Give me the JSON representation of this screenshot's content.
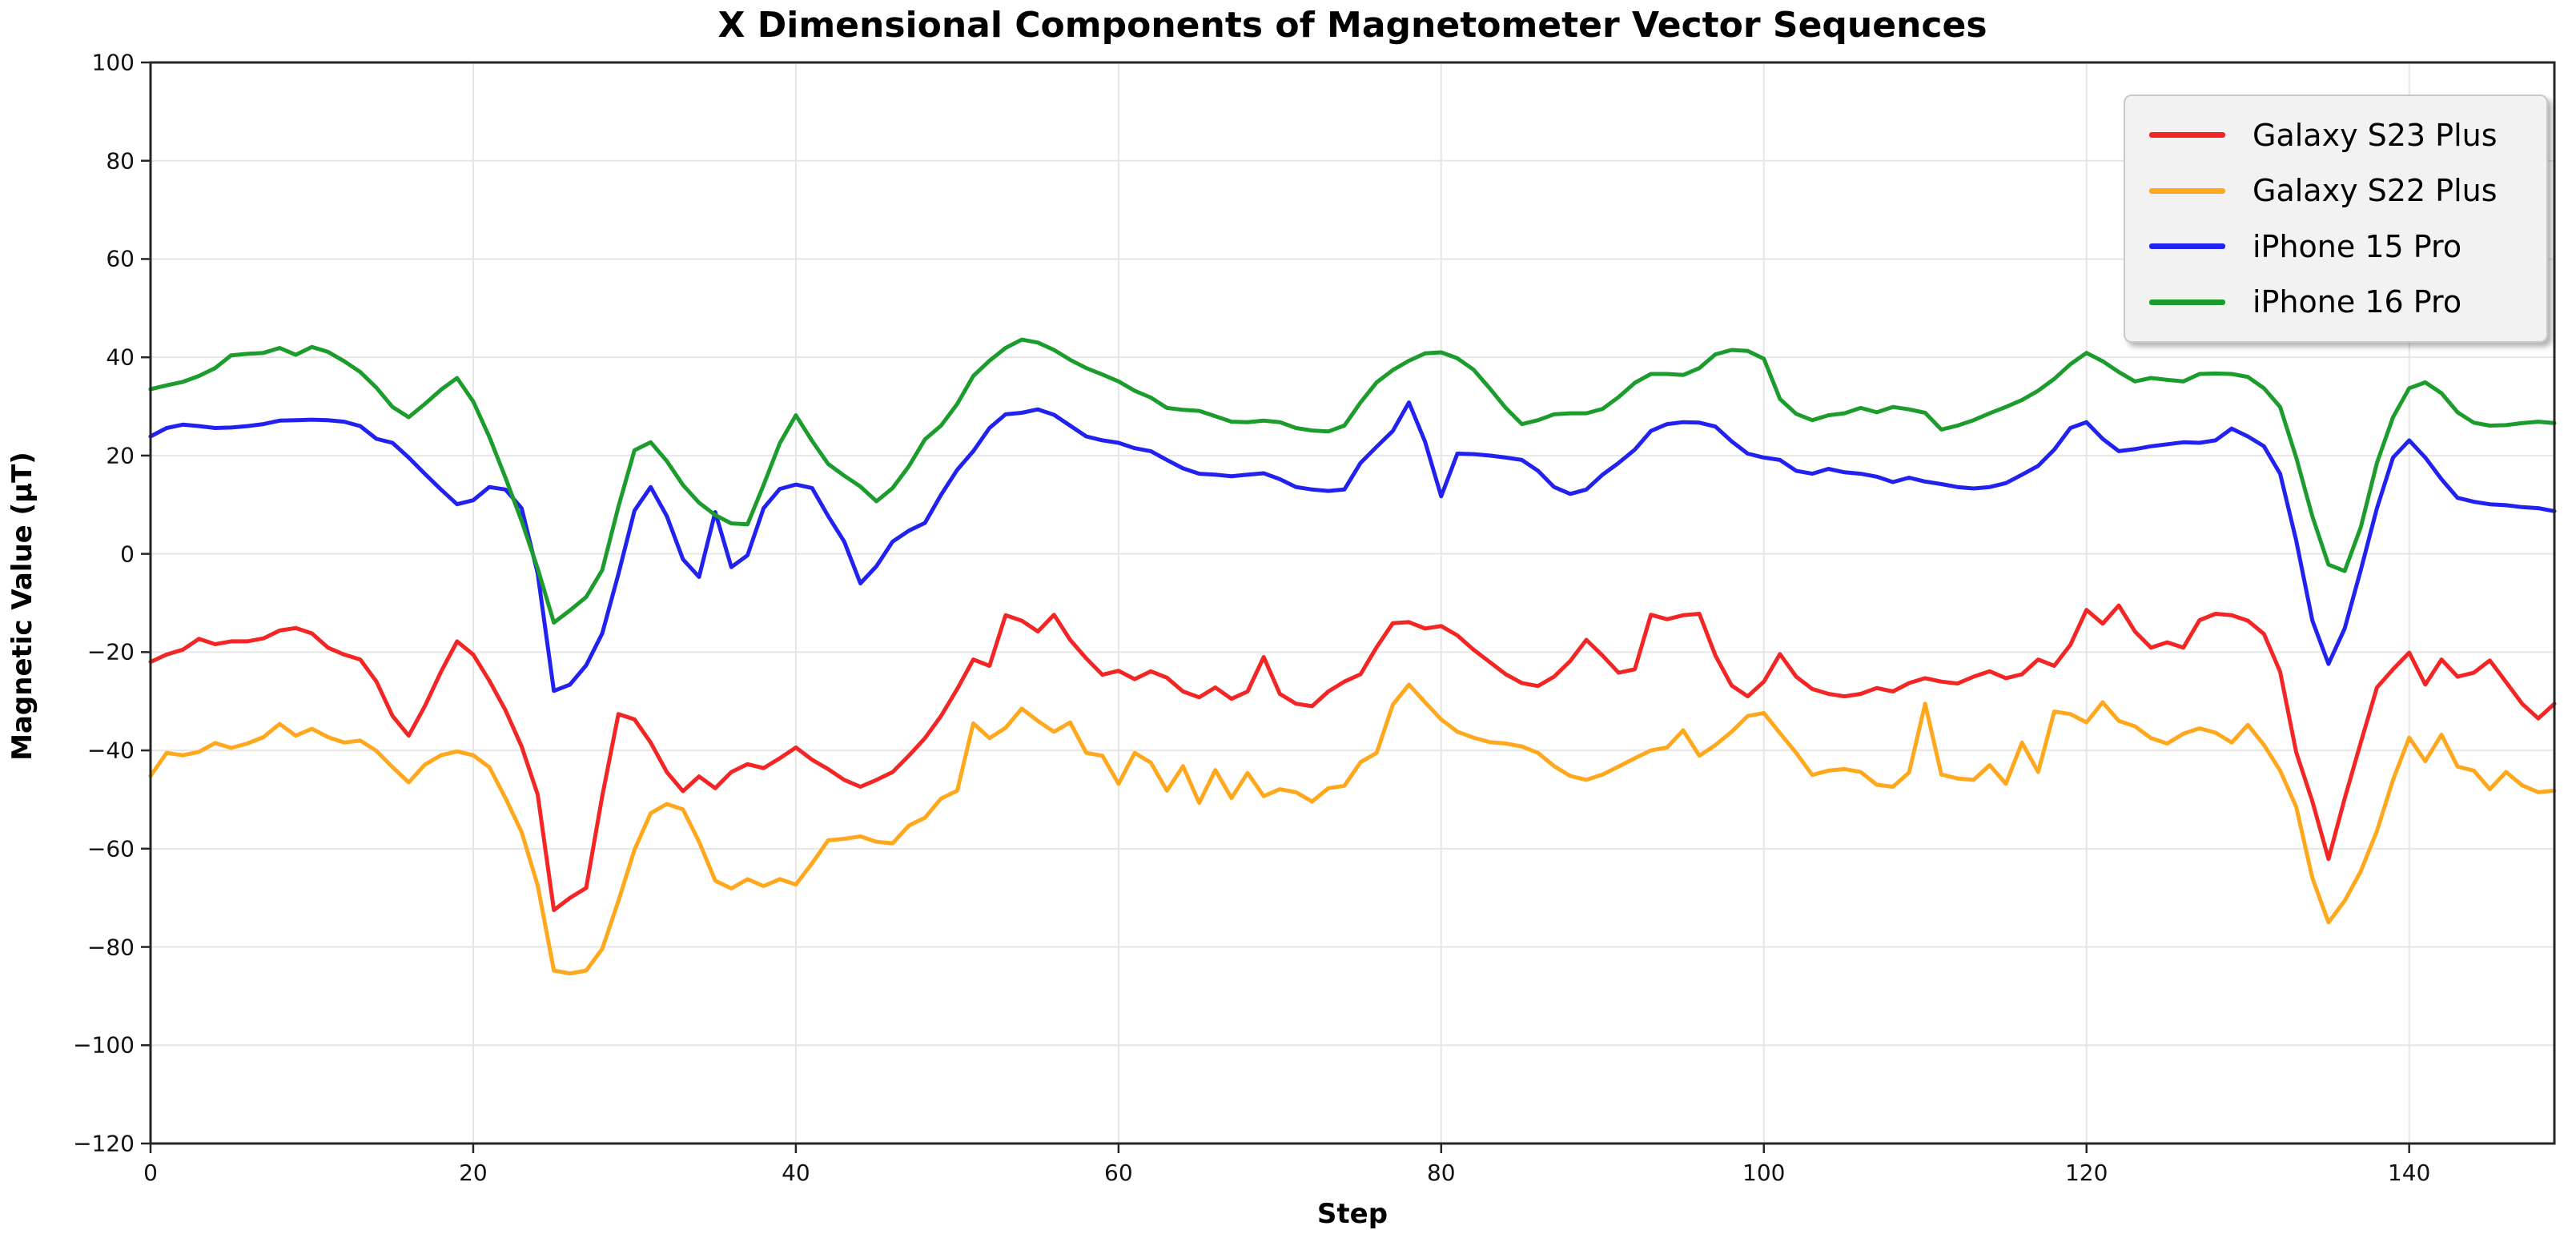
{
  "chart_data": {
    "type": "line",
    "title": "X Dimensional Components of Magnetometer Vector Sequences",
    "xlabel": "Step",
    "ylabel": "Magnetic Value (μT)",
    "xlim": [
      0,
      149
    ],
    "ylim": [
      -120,
      100
    ],
    "x_ticks": [
      0,
      20,
      40,
      60,
      80,
      100,
      120,
      140
    ],
    "y_ticks": [
      100,
      80,
      60,
      40,
      20,
      0,
      -20,
      -40,
      -60,
      -80,
      -100,
      -120
    ],
    "grid": true,
    "legend_position": "upper right",
    "x": "0..149 (step index, one point per step)",
    "series": [
      {
        "name": "Galaxy S23 Plus",
        "color": "#f42525",
        "values": [
          -22.0,
          -20.5,
          -19.5,
          -17.3,
          -18.4,
          -17.8,
          -17.8,
          -17.2,
          -15.6,
          -15.1,
          -16.2,
          -19.1,
          -20.5,
          -21.5,
          -26.0,
          -33.0,
          -37.0,
          -31.0,
          -24.0,
          -17.8,
          -20.5,
          -25.8,
          -31.8,
          -39.2,
          -49.0,
          -72.5,
          -70.0,
          -68.0,
          -49.3,
          -32.6,
          -33.7,
          -38.4,
          -44.4,
          -48.3,
          -45.3,
          -47.7,
          -44.4,
          -42.8,
          -43.6,
          -41.6,
          -39.4,
          -41.9,
          -43.8,
          -46.0,
          -47.4,
          -46.0,
          -44.4,
          -41.1,
          -37.5,
          -33.0,
          -27.5,
          -21.5,
          -22.8,
          -12.5,
          -13.6,
          -15.8,
          -12.4,
          -17.5,
          -21.3,
          -24.6,
          -23.8,
          -25.5,
          -23.9,
          -25.2,
          -28.0,
          -29.2,
          -27.2,
          -29.5,
          -28.0,
          -21.0,
          -28.5,
          -30.5,
          -31.0,
          -28.0,
          -26.0,
          -24.5,
          -19.0,
          -14.1,
          -13.9,
          -15.2,
          -14.7,
          -16.6,
          -19.5,
          -22.0,
          -24.5,
          -26.3,
          -26.9,
          -25.0,
          -21.8,
          -17.5,
          -20.7,
          -24.2,
          -23.5,
          -12.4,
          -13.3,
          -12.5,
          -12.2,
          -20.7,
          -26.8,
          -29.0,
          -26.0,
          -20.4,
          -25.0,
          -27.5,
          -28.5,
          -29.0,
          -28.5,
          -27.3,
          -28.0,
          -26.3,
          -25.3,
          -26.0,
          -26.4,
          -25.0,
          -23.9,
          -25.3,
          -24.5,
          -21.5,
          -22.8,
          -18.5,
          -11.4,
          -14.2,
          -10.5,
          -15.8,
          -19.1,
          -18.0,
          -19.1,
          -13.5,
          -12.2,
          -12.5,
          -13.6,
          -16.3,
          -24.0,
          -40.4,
          -50.4,
          -62.1,
          -49.8,
          -38.4,
          -27.2,
          -23.5,
          -20.1,
          -26.6,
          -21.5,
          -25.0,
          -24.2,
          -21.7,
          -26.1,
          -30.5,
          -33.5,
          -30.5
        ]
      },
      {
        "name": "Galaxy S22 Plus",
        "color": "#ffa81e",
        "values": [
          -45.2,
          -40.5,
          -41.0,
          -40.3,
          -38.5,
          -39.5,
          -38.6,
          -37.3,
          -34.6,
          -37.0,
          -35.6,
          -37.3,
          -38.4,
          -38.0,
          -40.1,
          -43.4,
          -46.5,
          -42.9,
          -41.0,
          -40.2,
          -41.0,
          -43.4,
          -49.7,
          -56.6,
          -67.5,
          -84.8,
          -85.4,
          -84.8,
          -80.4,
          -70.6,
          -60.2,
          -52.8,
          -50.9,
          -52.0,
          -58.6,
          -66.5,
          -68.1,
          -66.2,
          -67.6,
          -66.2,
          -67.3,
          -63.0,
          -58.3,
          -58.0,
          -57.5,
          -58.6,
          -58.9,
          -55.3,
          -53.7,
          -49.8,
          -48.2,
          -34.5,
          -37.5,
          -35.4,
          -31.5,
          -34.0,
          -36.2,
          -34.3,
          -40.5,
          -41.1,
          -46.8,
          -40.5,
          -42.5,
          -48.2,
          -43.2,
          -50.7,
          -44.0,
          -49.7,
          -44.6,
          -49.3,
          -47.9,
          -48.5,
          -50.4,
          -47.7,
          -47.2,
          -42.4,
          -40.5,
          -30.7,
          -26.6,
          -30.2,
          -33.7,
          -36.2,
          -37.4,
          -38.3,
          -38.6,
          -39.2,
          -40.5,
          -43.2,
          -45.2,
          -46.0,
          -44.9,
          -43.3,
          -41.6,
          -40.0,
          -39.4,
          -35.9,
          -41.1,
          -38.9,
          -36.2,
          -33.0,
          -32.4,
          -36.5,
          -40.5,
          -45.0,
          -44.1,
          -43.8,
          -44.4,
          -47.0,
          -47.4,
          -44.5,
          -30.5,
          -44.9,
          -45.7,
          -46.0,
          -43.0,
          -46.8,
          -38.4,
          -44.4,
          -32.1,
          -32.6,
          -34.3,
          -30.2,
          -34.0,
          -35.1,
          -37.5,
          -38.6,
          -36.6,
          -35.5,
          -36.4,
          -38.4,
          -34.8,
          -38.9,
          -44.1,
          -51.5,
          -66.0,
          -75.0,
          -70.6,
          -64.6,
          -56.4,
          -46.0,
          -37.4,
          -42.2,
          -36.8,
          -43.3,
          -44.1,
          -47.9,
          -44.4,
          -47.1,
          -48.5,
          -48.2
        ]
      },
      {
        "name": "iPhone 15 Pro",
        "color": "#2121f0",
        "values": [
          23.9,
          25.6,
          26.3,
          26.0,
          25.6,
          25.7,
          26.0,
          26.4,
          27.1,
          27.2,
          27.3,
          27.2,
          26.9,
          26.0,
          23.4,
          22.6,
          19.6,
          16.3,
          13.1,
          10.1,
          10.9,
          13.6,
          13.1,
          9.3,
          -4.0,
          -27.9,
          -26.6,
          -22.7,
          -16.2,
          -4.1,
          8.8,
          13.6,
          7.7,
          -1.1,
          -4.7,
          8.5,
          -2.7,
          -0.3,
          9.3,
          13.2,
          14.1,
          13.4,
          7.7,
          2.5,
          -6.0,
          -2.5,
          2.5,
          4.7,
          6.3,
          12.0,
          17.1,
          20.9,
          25.6,
          28.4,
          28.7,
          29.4,
          28.3,
          26.1,
          23.9,
          23.1,
          22.6,
          21.5,
          20.9,
          19.1,
          17.4,
          16.3,
          16.1,
          15.8,
          16.1,
          16.4,
          15.2,
          13.6,
          13.1,
          12.8,
          13.1,
          18.5,
          21.8,
          25.0,
          30.8,
          22.8,
          11.7,
          20.4,
          20.3,
          20.0,
          19.6,
          19.1,
          16.9,
          13.6,
          12.2,
          13.1,
          16.1,
          18.5,
          21.2,
          25.0,
          26.4,
          26.8,
          26.7,
          25.9,
          22.9,
          20.4,
          19.6,
          19.1,
          16.9,
          16.3,
          17.3,
          16.6,
          16.3,
          15.7,
          14.6,
          15.5,
          14.7,
          14.2,
          13.6,
          13.3,
          13.6,
          14.4,
          16.1,
          17.9,
          21.2,
          25.6,
          26.8,
          23.4,
          20.9,
          21.3,
          21.9,
          22.3,
          22.7,
          22.6,
          23.1,
          25.5,
          23.9,
          21.9,
          16.3,
          2.7,
          -13.6,
          -22.4,
          -15.2,
          -3.3,
          9.3,
          19.6,
          23.1,
          19.6,
          15.2,
          11.4,
          10.6,
          10.1,
          9.9,
          9.5,
          9.3,
          8.7
        ]
      },
      {
        "name": "iPhone 16 Pro",
        "color": "#1b9c2c",
        "values": [
          33.5,
          34.3,
          35.0,
          36.2,
          37.8,
          40.4,
          40.7,
          40.9,
          41.9,
          40.5,
          42.1,
          41.1,
          39.2,
          37.0,
          33.8,
          29.9,
          27.8,
          30.5,
          33.4,
          35.8,
          31.0,
          23.8,
          15.5,
          6.7,
          -3.0,
          -14.0,
          -11.5,
          -8.8,
          -3.3,
          9.6,
          21.1,
          22.7,
          18.9,
          14.0,
          10.4,
          7.9,
          6.2,
          6.0,
          14.0,
          22.5,
          28.2,
          23.0,
          18.3,
          15.9,
          13.7,
          10.7,
          13.4,
          17.8,
          23.3,
          26.1,
          30.5,
          36.2,
          39.3,
          41.9,
          43.6,
          43.0,
          41.5,
          39.5,
          37.8,
          36.5,
          35.1,
          33.2,
          31.8,
          29.7,
          29.3,
          29.1,
          28.0,
          26.9,
          26.8,
          27.1,
          26.8,
          25.6,
          25.1,
          24.9,
          26.1,
          30.8,
          34.9,
          37.4,
          39.3,
          40.8,
          41.0,
          39.8,
          37.5,
          33.7,
          29.7,
          26.4,
          27.2,
          28.4,
          28.6,
          28.6,
          29.5,
          31.9,
          34.8,
          36.6,
          36.6,
          36.4,
          37.8,
          40.6,
          41.5,
          41.3,
          39.7,
          31.5,
          28.5,
          27.2,
          28.2,
          28.6,
          29.7,
          28.8,
          29.9,
          29.4,
          28.7,
          25.3,
          26.1,
          27.2,
          28.6,
          29.9,
          31.3,
          33.2,
          35.6,
          38.6,
          40.9,
          39.2,
          37.0,
          35.1,
          35.8,
          35.4,
          35.1,
          36.6,
          36.7,
          36.6,
          36.0,
          33.7,
          29.9,
          19.6,
          7.6,
          -2.2,
          -3.5,
          5.4,
          18.5,
          27.8,
          33.7,
          34.9,
          32.7,
          28.8,
          26.7,
          26.1,
          26.2,
          26.6,
          26.9,
          26.6
        ]
      }
    ],
    "style": {
      "grid_color": "#e6e6e6",
      "spine_color": "#262626",
      "background": "#ffffff",
      "legend_background": "#f2f2f2",
      "line_width": 5
    }
  }
}
